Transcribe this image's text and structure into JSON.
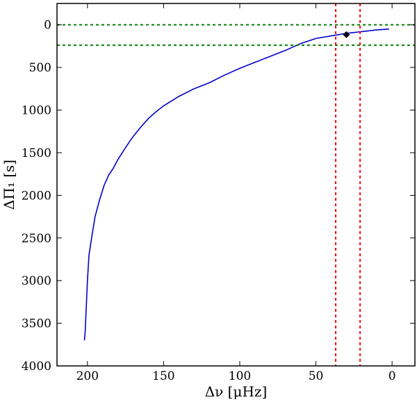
{
  "chart_data": {
    "type": "line",
    "xlabel": "Δν [μHz]",
    "ylabel": "ΔΠ₁ [s]",
    "xlim": [
      220,
      -15
    ],
    "ylim": [
      4000,
      -250
    ],
    "x_ticks": [
      200,
      150,
      100,
      50,
      0
    ],
    "y_ticks": [
      0,
      500,
      1000,
      1500,
      2000,
      2500,
      3000,
      3500,
      4000
    ],
    "grid": false,
    "series": [
      {
        "color": "#0000cc",
        "points": [
          [
            202,
            3700
          ],
          [
            201.5,
            3600
          ],
          [
            201,
            3400
          ],
          [
            200,
            3000
          ],
          [
            199,
            2700
          ],
          [
            197,
            2470
          ],
          [
            195,
            2250
          ],
          [
            192,
            2050
          ],
          [
            189,
            1880
          ],
          [
            186,
            1760
          ],
          [
            183,
            1680
          ],
          [
            180,
            1580
          ],
          [
            175,
            1440
          ],
          [
            170,
            1310
          ],
          [
            165,
            1200
          ],
          [
            160,
            1100
          ],
          [
            155,
            1020
          ],
          [
            150,
            950
          ],
          [
            140,
            840
          ],
          [
            130,
            750
          ],
          [
            120,
            680
          ],
          [
            110,
            590
          ],
          [
            100,
            510
          ],
          [
            90,
            440
          ],
          [
            80,
            370
          ],
          [
            70,
            300
          ],
          [
            60,
            220
          ],
          [
            50,
            160
          ],
          [
            40,
            130
          ],
          [
            30,
            100
          ],
          [
            20,
            80
          ],
          [
            10,
            60
          ],
          [
            2,
            50
          ]
        ]
      }
    ],
    "reference_lines": {
      "horizontal": {
        "values": [
          0,
          240
        ],
        "color": "#008000",
        "style": "dotted"
      },
      "vertical": {
        "values": [
          37,
          21
        ],
        "color": "#ff0000",
        "style": "dotted"
      }
    },
    "marker": {
      "x": 30,
      "y": 115,
      "shape": "diamond",
      "color": "#000000"
    }
  }
}
